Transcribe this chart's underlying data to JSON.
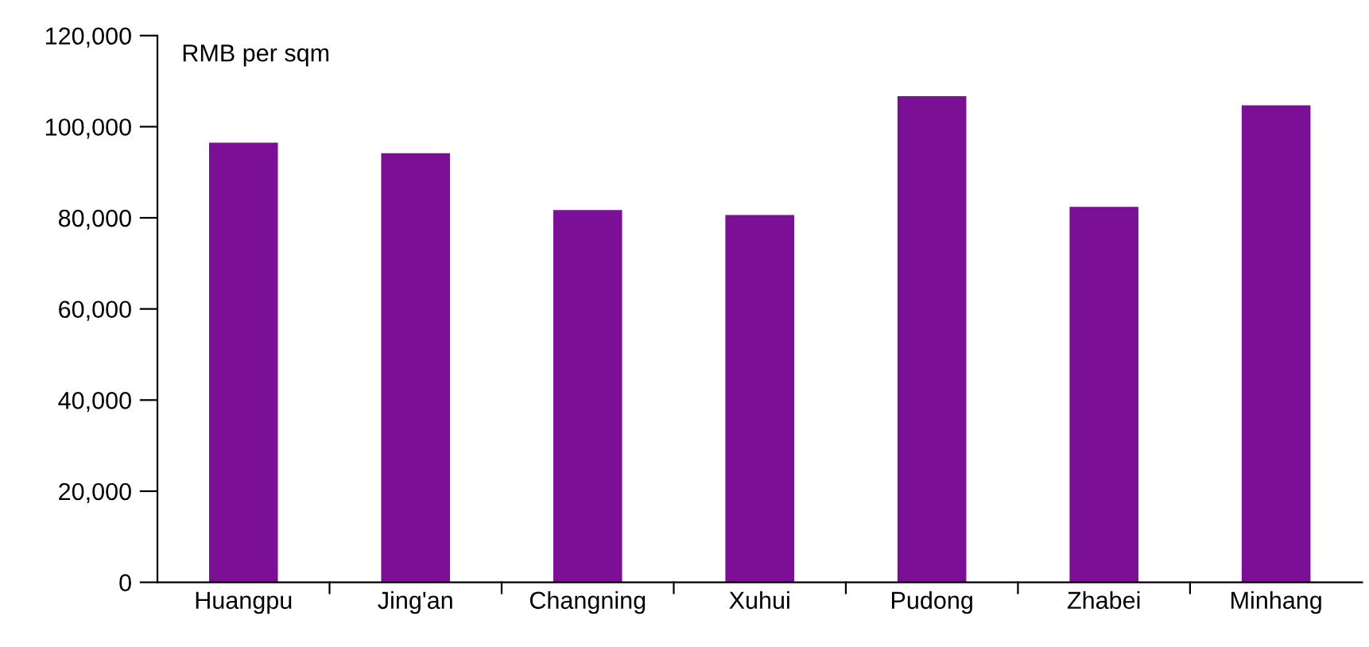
{
  "chart_data": {
    "type": "bar",
    "ylabel": "RMB per sqm",
    "categories": [
      "Huangpu",
      "Jing'an",
      "Changning",
      "Xuhui",
      "Pudong",
      "Zhabei",
      "Minhang"
    ],
    "values": [
      96500,
      94200,
      81700,
      80600,
      106700,
      82400,
      104700
    ],
    "color": "#7b0f96",
    "ylim": [
      0,
      120000
    ],
    "yticks": [
      {
        "value": 0,
        "label": "0"
      },
      {
        "value": 20000,
        "label": "20,000"
      },
      {
        "value": 40000,
        "label": "40,000"
      },
      {
        "value": 60000,
        "label": "60,000"
      },
      {
        "value": 80000,
        "label": "80,000"
      },
      {
        "value": 100000,
        "label": "100,000"
      },
      {
        "value": 120000,
        "label": "120,000"
      }
    ],
    "grid": false
  }
}
